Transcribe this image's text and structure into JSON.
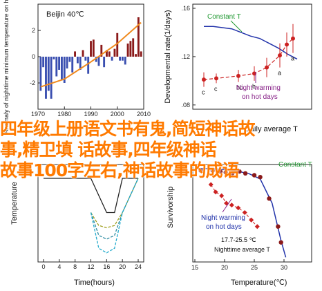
{
  "overlay": {
    "line1": "四年级上册语文书有鬼,简短神话故",
    "line2": "事,精卫填 话故事,四年级神话",
    "line3": "故事100字左右,神话故事的成语"
  },
  "colors": {
    "bar": "#8b1a1a",
    "bar_neg": "#3a4fb0",
    "trend": "#f08a1e",
    "constant": "#2233aa",
    "warming": "#cc2222",
    "text_green": "#229933",
    "text_purple": "#882288",
    "cyan": "#22aacc",
    "olive": "#a0a020",
    "teal": "#2a8aa0"
  },
  "chart_data": [
    {
      "type": "bar",
      "title": "Beijin 40℃",
      "ylabel": "Anomaly of nighttime minimum temperature on hot days",
      "xlim": [
        1970,
        2010
      ],
      "ylim": [
        -4,
        4
      ],
      "xticks": [
        1970,
        1980,
        1990,
        2000,
        2010
      ],
      "yticks": [
        -2,
        0,
        2
      ],
      "x": [
        1971,
        1972,
        1973,
        1974,
        1975,
        1976,
        1977,
        1978,
        1979,
        1980,
        1981,
        1982,
        1983,
        1984,
        1985,
        1986,
        1987,
        1988,
        1989,
        1990,
        1991,
        1992,
        1993,
        1994,
        1995,
        1996,
        1997,
        1998,
        1999,
        2000,
        2001,
        2002,
        2003,
        2004,
        2005,
        2006,
        2007,
        2008,
        2009
      ],
      "values": [
        -2.6,
        -0.8,
        -3.2,
        -2.6,
        -3.2,
        -0.2,
        -1.5,
        -1.0,
        -1.8,
        -2.0,
        -0.9,
        -0.4,
        -1.2,
        0.4,
        -0.5,
        -1.0,
        0.5,
        -0.3,
        -1.3,
        1.2,
        1.3,
        -0.4,
        -0.7,
        0.9,
        -0.8,
        0.5,
        0.4,
        -0.3,
        0.6,
        1.8,
        -0.3,
        -0.3,
        -0.6,
        1.0,
        1.2,
        1.4,
        0.2,
        3.0,
        0.4
      ],
      "trend": [
        [
          1971,
          -2.3
        ],
        [
          1980,
          -1.7
        ],
        [
          1990,
          -0.4
        ],
        [
          1995,
          0.3
        ],
        [
          2000,
          1.0
        ],
        [
          2009,
          2.6
        ]
      ]
    },
    {
      "type": "line",
      "ylabel": "Developmental rate(1/days)",
      "xlabel": "Daily average T",
      "ylim": [
        0.08,
        0.16
      ],
      "yticks": [
        0.08,
        0.12,
        0.16
      ],
      "yticklabels": [
        ".08",
        ".12",
        ".16"
      ],
      "annotations": [
        "Constant T",
        "Night warming on hot days"
      ],
      "series": [
        {
          "values": [
            0.145,
            0.145,
            0.144,
            0.143,
            0.14,
            0.137,
            0.135,
            0.131,
            0.127,
            0.122,
            0.118
          ]
        },
        {
          "values": [
            0.101,
            0.102,
            0.104,
            0.106,
            0.111,
            0.121,
            0.13,
            0.135
          ],
          "errors": [
            0.006,
            0.004,
            0.005,
            0.006,
            0.008,
            0.01,
            0.01,
            0.012
          ],
          "letters": [
            "c",
            "c",
            "bc",
            "b",
            "",
            "a",
            "",
            "a"
          ]
        }
      ]
    },
    {
      "type": "line",
      "xlabel": "Time(hours)",
      "ylabel": "Temperature",
      "xticks": [
        0,
        4,
        8,
        12,
        16,
        20,
        24
      ],
      "series": [
        {
          "x": [
            0,
            4,
            8,
            12,
            16,
            18,
            20,
            24
          ],
          "values": [
            1.0,
            1.0,
            1.0,
            1.0,
            0.55,
            0.55,
            1.0,
            1.0
          ]
        },
        {
          "x": [
            12,
            14,
            16,
            18,
            20,
            24
          ],
          "values": [
            0.55,
            0.38,
            0.35,
            0.38,
            0.55,
            1.0
          ]
        },
        {
          "x": [
            12,
            14,
            16,
            18,
            20,
            24
          ],
          "values": [
            0.55,
            0.25,
            0.2,
            0.25,
            0.55,
            1.0
          ]
        },
        {
          "x": [
            12,
            14,
            16,
            18,
            20,
            24
          ],
          "values": [
            0.55,
            0.08,
            0.02,
            0.08,
            0.55,
            1.0
          ]
        }
      ]
    },
    {
      "type": "scatter",
      "xlabel": "Temperature(℃)",
      "ylabel": "Survivorship",
      "xlim": [
        10,
        30
      ],
      "xticks": [
        15,
        20,
        25,
        30
      ],
      "annotations": [
        "Constant T",
        "Night warming on hot days",
        "17.7-25.5 ℃",
        "Nighttime average T"
      ],
      "series": [
        {
          "x": [
            16,
            18,
            19.3,
            20.2,
            21.3,
            22.5,
            23.5,
            25,
            26,
            27.5,
            29,
            29.5
          ],
          "values": [
            0.95,
            0.95,
            0.94,
            0.93,
            0.92,
            0.94,
            0.92,
            0.9,
            0.88,
            0.65,
            0.35,
            0.18
          ]
        },
        {
          "x": [
            17.7,
            18.5,
            19.5,
            20.3,
            21.2,
            22.3,
            23.4,
            24.5,
            25.5
          ],
          "values": [
            0.8,
            0.72,
            0.68,
            0.6,
            0.58,
            0.55,
            0.5,
            0.42,
            0.35
          ]
        }
      ]
    }
  ]
}
